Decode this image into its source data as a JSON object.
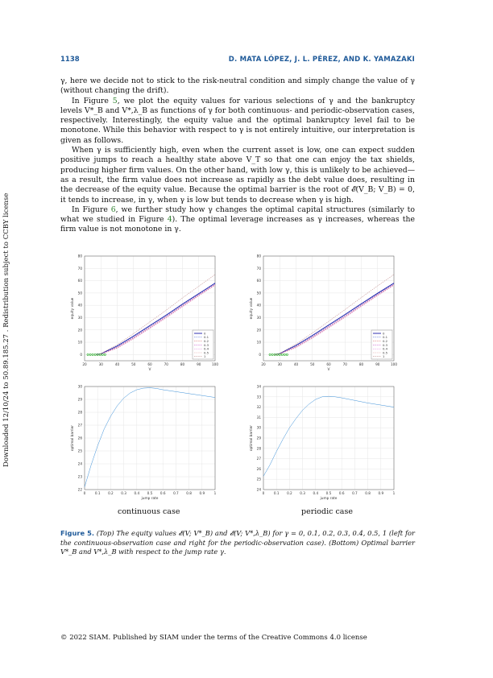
{
  "header": {
    "page_number": "1138",
    "authors": "D. MATA LÓPEZ, J. L. PÉREZ, AND K. YAMAZAKI"
  },
  "paragraphs": [
    {
      "id": "p1",
      "indent": false,
      "text": "γ, here we decide not to stick to the risk-neutral condition and simply change the value of γ (without changing the drift)."
    },
    {
      "id": "p2",
      "indent": true,
      "pre": "In Figure ",
      "link": "5",
      "post": ", we plot the equity values for various selections of γ and the bankruptcy levels V*_B and V*,λ_B as functions of γ for both continuous- and periodic-observation cases, respectively. Interestingly, the equity value and the optimal bankruptcy level fail to be monotone. While this behavior with respect to γ is not entirely intuitive, our interpretation is given as follows."
    },
    {
      "id": "p3",
      "indent": true,
      "text": "When γ is sufficiently high, even when the current asset is low, one can expect sudden positive jumps to reach a healthy state above V_T so that one can enjoy the tax shields, producing higher firm values. On the other hand, with low γ, this is unlikely to be achieved—as a result, the firm value does not increase as rapidly as the debt value does, resulting in the decrease of the equity value. Because the optimal barrier is the root of 𝓔(V_B; V_B) = 0, it tends to increase, in γ, when γ is low but tends to decrease when γ is high."
    },
    {
      "id": "p4",
      "indent": true,
      "pre": "In Figure ",
      "link": "6",
      "mid": ", we further study how γ changes the optimal capital structures (similarly to what we studied in Figure ",
      "link2": "4",
      "post": "). The optimal leverage increases as γ increases, whereas the firm value is not monotone in γ."
    }
  ],
  "side_note": "Downloaded 12/10/24 to 50.89.185.27 . Redistribution subject to CCBY license",
  "charts": {
    "equity": {
      "xlabel": "V",
      "ylabel": "equity value",
      "xticks": [
        "20",
        "30",
        "40",
        "50",
        "60",
        "70",
        "80",
        "90",
        "100"
      ],
      "yticks": [
        "0",
        "10",
        "20",
        "30",
        "40",
        "50",
        "60",
        "70",
        "80"
      ],
      "legend": [
        "0",
        "0.1",
        "0.2",
        "0.3",
        "0.4",
        "0.5",
        "1"
      ]
    },
    "barrier_left": {
      "xlabel": "jump rate",
      "ylabel": "optimal barrier",
      "xticks": [
        "0",
        "0.1",
        "0.2",
        "0.3",
        "0.4",
        "0.5",
        "0.6",
        "0.7",
        "0.8",
        "0.9",
        "1"
      ],
      "yticks": [
        "22",
        "23",
        "24",
        "25",
        "26",
        "27",
        "28",
        "29",
        "30"
      ]
    },
    "barrier_right": {
      "xlabel": "jump rate",
      "ylabel": "optimal barrier",
      "xticks": [
        "0",
        "0.1",
        "0.2",
        "0.3",
        "0.4",
        "0.5",
        "0.6",
        "0.7",
        "0.8",
        "0.9",
        "1"
      ],
      "yticks": [
        "24",
        "25",
        "26",
        "27",
        "28",
        "29",
        "30",
        "31",
        "32",
        "33",
        "34"
      ]
    }
  },
  "chart_data": [
    {
      "type": "line",
      "panel": "top-left (continuous case)",
      "xlabel": "V",
      "ylabel": "equity value",
      "xlim": [
        20,
        100
      ],
      "ylim": [
        -5,
        80
      ],
      "legend_position": "right",
      "series": [
        {
          "name": "0",
          "color": "#1a1aa8",
          "style": "solid",
          "x": [
            27,
            30,
            40,
            50,
            60,
            70,
            80,
            90,
            100
          ],
          "y": [
            0,
            0.6,
            7,
            15,
            23.5,
            32,
            41,
            49.5,
            58
          ]
        },
        {
          "name": "0.1",
          "color": "#3b5bd6",
          "style": "dashed",
          "x": [
            27,
            30,
            40,
            50,
            60,
            70,
            80,
            90,
            100
          ],
          "y": [
            0,
            0.5,
            6.5,
            14.3,
            22.8,
            31.3,
            40.3,
            49,
            57.5
          ]
        },
        {
          "name": "0.2",
          "color": "#d45a5a",
          "style": "dashed",
          "x": [
            27,
            30,
            40,
            50,
            60,
            70,
            80,
            90,
            100
          ],
          "y": [
            0,
            0.4,
            6,
            13.8,
            22.2,
            30.8,
            39.8,
            48.5,
            57
          ]
        },
        {
          "name": "0.3",
          "color": "#c33fc3",
          "style": "dashed",
          "x": [
            27,
            30,
            40,
            50,
            60,
            70,
            80,
            90,
            100
          ],
          "y": [
            0,
            0.35,
            5.6,
            13.4,
            21.8,
            30.4,
            39.4,
            48.2,
            56.7
          ]
        },
        {
          "name": "0.4",
          "color": "#e080e0",
          "style": "dashed",
          "x": [
            27,
            30,
            40,
            50,
            60,
            70,
            80,
            90,
            100
          ],
          "y": [
            0,
            0.3,
            5.3,
            13,
            21.4,
            30,
            39,
            47.9,
            56.4
          ]
        },
        {
          "name": "0.5",
          "color": "#e0a0a0",
          "style": "dashed",
          "x": [
            27,
            30,
            40,
            50,
            60,
            70,
            80,
            90,
            100
          ],
          "y": [
            0,
            0.3,
            5.1,
            12.7,
            21.1,
            29.7,
            38.7,
            47.6,
            56.2
          ]
        },
        {
          "name": "1",
          "color": "#b07070",
          "style": "dashed",
          "x": [
            27,
            30,
            40,
            50,
            60,
            70,
            80,
            90,
            100
          ],
          "y": [
            0,
            0.8,
            8,
            17,
            26.5,
            36,
            46,
            55.5,
            65
          ]
        }
      ],
      "markers": {
        "color": "#22aa22",
        "x": [
          22,
          23.5,
          25,
          26.5,
          28,
          29.5,
          31,
          32.5
        ],
        "y": [
          0,
          0,
          0,
          0,
          0,
          0,
          0,
          0
        ]
      }
    },
    {
      "type": "line",
      "panel": "top-right (periodic case)",
      "xlabel": "V",
      "ylabel": "equity value",
      "xlim": [
        20,
        100
      ],
      "ylim": [
        -5,
        80
      ],
      "legend_position": "right",
      "series": [
        {
          "name": "0",
          "color": "#1a1aa8",
          "style": "solid",
          "x": [
            27,
            30,
            40,
            50,
            60,
            70,
            80,
            90,
            100
          ],
          "y": [
            0,
            0.8,
            7.5,
            15.5,
            24,
            32.5,
            41.3,
            49.8,
            58
          ]
        },
        {
          "name": "0.1",
          "color": "#3b5bd6",
          "style": "dashed",
          "x": [
            27,
            30,
            40,
            50,
            60,
            70,
            80,
            90,
            100
          ],
          "y": [
            0,
            0.7,
            7,
            14.8,
            23.3,
            31.8,
            40.6,
            49.2,
            57.5
          ]
        },
        {
          "name": "0.2",
          "color": "#d45a5a",
          "style": "dashed",
          "x": [
            27,
            30,
            40,
            50,
            60,
            70,
            80,
            90,
            100
          ],
          "y": [
            0,
            0.6,
            6.5,
            14.3,
            22.7,
            31.2,
            40.1,
            48.7,
            57
          ]
        },
        {
          "name": "0.3",
          "color": "#c33fc3",
          "style": "dashed",
          "x": [
            27,
            30,
            40,
            50,
            60,
            70,
            80,
            90,
            100
          ],
          "y": [
            0,
            0.5,
            6.1,
            13.9,
            22.3,
            30.8,
            39.7,
            48.4,
            56.7
          ]
        },
        {
          "name": "0.4",
          "color": "#e080e0",
          "style": "dashed",
          "x": [
            27,
            30,
            40,
            50,
            60,
            70,
            80,
            90,
            100
          ],
          "y": [
            0,
            0.45,
            5.8,
            13.5,
            21.9,
            30.4,
            39.3,
            48.1,
            56.4
          ]
        },
        {
          "name": "0.5",
          "color": "#e0a0a0",
          "style": "dashed",
          "x": [
            27,
            30,
            40,
            50,
            60,
            70,
            80,
            90,
            100
          ],
          "y": [
            0,
            0.4,
            5.6,
            13.2,
            21.6,
            30.1,
            39,
            47.8,
            56.2
          ]
        },
        {
          "name": "1",
          "color": "#b07070",
          "style": "dashed",
          "x": [
            27,
            30,
            40,
            50,
            60,
            70,
            80,
            90,
            100
          ],
          "y": [
            0,
            1,
            8.5,
            17.5,
            27,
            36.5,
            46.3,
            55.8,
            65
          ]
        }
      ],
      "markers": {
        "color": "#22aa22",
        "x": [
          24,
          25.5,
          27,
          28.5,
          30,
          31.5,
          33,
          34.5
        ],
        "y": [
          0,
          0,
          0,
          0,
          0,
          0,
          0,
          0
        ]
      }
    },
    {
      "type": "line",
      "panel": "bottom-left (continuous case)",
      "xlabel": "jump rate",
      "ylabel": "optimal barrier",
      "xlim": [
        0,
        1
      ],
      "ylim": [
        22,
        30
      ],
      "series": [
        {
          "color": "#3a8fd8",
          "x": [
            0,
            0.05,
            0.1,
            0.15,
            0.2,
            0.25,
            0.3,
            0.35,
            0.4,
            0.45,
            0.5,
            0.55,
            0.6,
            0.7,
            0.8,
            0.9,
            1.0
          ],
          "y": [
            22.2,
            23.9,
            25.4,
            26.7,
            27.7,
            28.5,
            29.1,
            29.5,
            29.75,
            29.87,
            29.9,
            29.85,
            29.75,
            29.6,
            29.45,
            29.3,
            29.15
          ]
        }
      ]
    },
    {
      "type": "line",
      "panel": "bottom-right (periodic case)",
      "xlabel": "jump rate",
      "ylabel": "optimal barrier",
      "xlim": [
        0,
        1
      ],
      "ylim": [
        24,
        34
      ],
      "series": [
        {
          "color": "#3a8fd8",
          "x": [
            0,
            0.05,
            0.1,
            0.15,
            0.2,
            0.25,
            0.3,
            0.35,
            0.4,
            0.45,
            0.5,
            0.55,
            0.6,
            0.7,
            0.8,
            0.9,
            1.0
          ],
          "y": [
            25.3,
            26.4,
            27.7,
            28.9,
            30.0,
            30.9,
            31.7,
            32.3,
            32.75,
            33.0,
            33.05,
            33.0,
            32.9,
            32.65,
            32.4,
            32.2,
            32.0
          ]
        }
      ]
    }
  ],
  "case_labels": {
    "left": "continuous case",
    "right": "periodic case"
  },
  "caption": {
    "fig_label": "Figure 5.",
    "text": "(Top) The equity values 𝓔(V; V*_B) and 𝓔(V; V*,λ_B) for γ = 0, 0.1, 0.2, 0.3, 0.4, 0.5, 1 (left for the continuous-observation case and right for the periodic-observation case). (Bottom) Optimal barrier V*_B and V*,λ_B with respect to the jump rate γ."
  },
  "footer": "© 2022 SIAM. Published by SIAM under the terms of the Creative Commons 4.0 license"
}
